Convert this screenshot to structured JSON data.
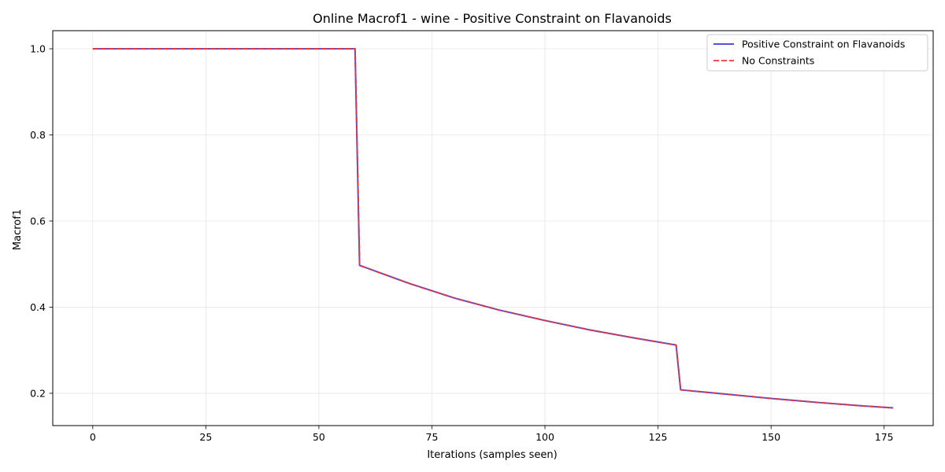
{
  "chart_data": {
    "type": "line",
    "title": "Online Macrof1 - wine - Positive Constraint on Flavanoids",
    "xlabel": "Iterations (samples seen)",
    "ylabel": "Macrof1",
    "xlim": [
      -8.85,
      185.85
    ],
    "ylim": [
      0.125,
      1.042
    ],
    "xticks": [
      0,
      25,
      50,
      75,
      100,
      125,
      150,
      175
    ],
    "yticks": [
      0.2,
      0.4,
      0.6,
      0.8,
      1.0
    ],
    "xtick_labels": [
      "0",
      "25",
      "50",
      "75",
      "100",
      "125",
      "150",
      "175"
    ],
    "ytick_labels": [
      "0.2",
      "0.4",
      "0.6",
      "0.8",
      "1.0"
    ],
    "grid": true,
    "legend_position": "top-right",
    "series": [
      {
        "name": "Positive Constraint on Flavanoids",
        "color": "#3333dd",
        "style": "solid",
        "x": [
          0,
          58,
          59,
          70,
          80,
          90,
          100,
          110,
          120,
          129,
          130,
          140,
          150,
          160,
          170,
          177
        ],
        "y": [
          1.0,
          1.0,
          0.497,
          0.455,
          0.421,
          0.393,
          0.369,
          0.347,
          0.328,
          0.312,
          0.208,
          0.198,
          0.188,
          0.179,
          0.171,
          0.166
        ]
      },
      {
        "name": "No Constraints",
        "color": "#ee3333",
        "style": "dashed",
        "x": [
          0,
          58,
          59,
          70,
          80,
          90,
          100,
          110,
          120,
          129,
          130,
          140,
          150,
          160,
          170,
          177
        ],
        "y": [
          1.0,
          1.0,
          0.497,
          0.455,
          0.421,
          0.393,
          0.369,
          0.347,
          0.328,
          0.312,
          0.208,
          0.198,
          0.188,
          0.179,
          0.171,
          0.166
        ]
      }
    ]
  }
}
